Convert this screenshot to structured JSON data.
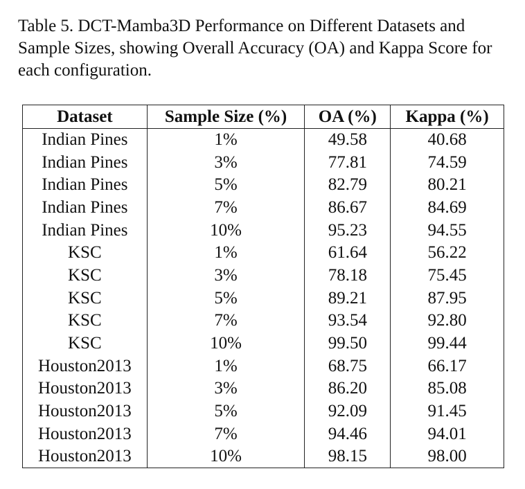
{
  "caption": "Table 5.  DCT-Mamba3D Performance on Different Datasets and Sample Sizes, showing Overall Accuracy (OA) and Kappa Score for each configuration.",
  "table": {
    "headers": [
      "Dataset",
      "Sample Size (%)",
      "OA (%)",
      "Kappa (%)"
    ],
    "rows": [
      [
        "Indian Pines",
        "1%",
        "49.58",
        "40.68"
      ],
      [
        "Indian Pines",
        "3%",
        "77.81",
        "74.59"
      ],
      [
        "Indian Pines",
        "5%",
        "82.79",
        "80.21"
      ],
      [
        "Indian Pines",
        "7%",
        "86.67",
        "84.69"
      ],
      [
        "Indian Pines",
        "10%",
        "95.23",
        "94.55"
      ],
      [
        "KSC",
        "1%",
        "61.64",
        "56.22"
      ],
      [
        "KSC",
        "3%",
        "78.18",
        "75.45"
      ],
      [
        "KSC",
        "5%",
        "89.21",
        "87.95"
      ],
      [
        "KSC",
        "7%",
        "93.54",
        "92.80"
      ],
      [
        "KSC",
        "10%",
        "99.50",
        "99.44"
      ],
      [
        "Houston2013",
        "1%",
        "68.75",
        "66.17"
      ],
      [
        "Houston2013",
        "3%",
        "86.20",
        "85.08"
      ],
      [
        "Houston2013",
        "5%",
        "92.09",
        "91.45"
      ],
      [
        "Houston2013",
        "7%",
        "94.46",
        "94.01"
      ],
      [
        "Houston2013",
        "10%",
        "98.15",
        "98.00"
      ]
    ]
  }
}
